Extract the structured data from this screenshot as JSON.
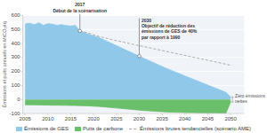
{
  "chart_data": {
    "type": "area",
    "y_label": "Émissions et puits annuels en MtCO₂éq",
    "x": [
      2005,
      2006,
      2007,
      2008,
      2009,
      2010,
      2011,
      2012,
      2013,
      2014,
      2015,
      2016,
      2017,
      2018,
      2019,
      2020,
      2021,
      2022,
      2023,
      2024,
      2025,
      2026,
      2027,
      2028,
      2029,
      2030,
      2031,
      2032,
      2033,
      2034,
      2035,
      2036,
      2037,
      2038,
      2039,
      2040,
      2041,
      2042,
      2043,
      2044,
      2045,
      2046,
      2047,
      2048,
      2049,
      2050
    ],
    "xlim": [
      2004.5,
      2053
    ],
    "xticks": [
      2005,
      2010,
      2015,
      2020,
      2025,
      2030,
      2035,
      2040,
      2045,
      2050
    ],
    "ylim": [
      -100,
      600
    ],
    "yticks": [
      -100,
      0,
      100,
      200,
      300,
      400,
      500,
      600
    ],
    "grid": true,
    "legend": "bottom",
    "series": [
      {
        "name": "Émissions de GES",
        "color": "#8fc8e8",
        "values": [
          540,
          545,
          535,
          548,
          530,
          542,
          538,
          530,
          535,
          528,
          525,
          530,
          490,
          478,
          465,
          455,
          445,
          430,
          415,
          400,
          385,
          370,
          355,
          340,
          325,
          310,
          295,
          280,
          265,
          250,
          235,
          222,
          208,
          195,
          182,
          168,
          155,
          142,
          129,
          116,
          103,
          90,
          77,
          64,
          50,
          18
        ]
      },
      {
        "name": "Puits de carbone",
        "color": "#6abf6a",
        "values": [
          -38,
          -38,
          -39,
          -39,
          -40,
          -40,
          -41,
          -41,
          -42,
          -42,
          -43,
          -43,
          -44,
          -45,
          -46,
          -48,
          -50,
          -52,
          -55,
          -58,
          -61,
          -64,
          -67,
          -70,
          -73,
          -76,
          -79,
          -81,
          -83,
          -85,
          -87,
          -89,
          -90,
          -91,
          -92,
          -93,
          -94,
          -94,
          -95,
          -95,
          -96,
          -96,
          -96,
          -97,
          -97,
          -18
        ]
      },
      {
        "name": "Émissions brutes tendancielles (scénario AME)",
        "type": "line",
        "line_style": "dashed",
        "color": "#aaaaaa",
        "values": [
          null,
          null,
          null,
          null,
          null,
          null,
          null,
          null,
          null,
          null,
          null,
          null,
          490,
          482,
          474,
          462,
          452,
          444,
          436,
          428,
          420,
          413,
          406,
          399,
          392,
          385,
          378,
          371,
          364,
          357,
          350,
          343,
          336,
          329,
          322,
          315,
          308,
          301,
          294,
          287,
          280,
          273,
          266,
          259,
          252,
          245
        ]
      }
    ],
    "annotations": [
      {
        "text": "2017\nDébut de la scénarisation",
        "x": 2017,
        "y": 490
      },
      {
        "text": "2030\nObjectif de réduction des\némissions de GES de 40%\npar rapport à 1990",
        "x": 2030,
        "y": 310
      },
      {
        "text": "Zéro émissions\nnettes",
        "x": 2050,
        "y": [
          18,
          -18
        ]
      }
    ]
  }
}
